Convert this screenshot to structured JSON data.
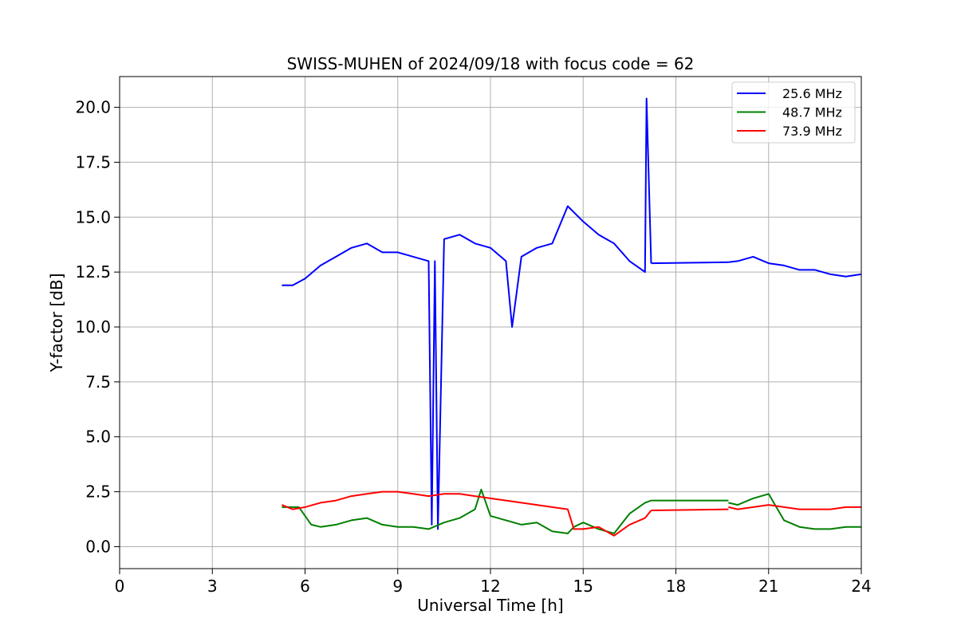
{
  "chart_data": {
    "type": "line",
    "title": "SWISS-MUHEN of 2024/09/18 with focus code = 62",
    "xlabel": "Universal Time [h]",
    "ylabel": "Y-factor [dB]",
    "xlim": [
      0,
      24
    ],
    "ylim": [
      -1.0,
      21.4
    ],
    "xticks": [
      0,
      3,
      6,
      9,
      12,
      15,
      18,
      21,
      24
    ],
    "xtick_labels": [
      "0",
      "3",
      "6",
      "9",
      "12",
      "15",
      "18",
      "21",
      "24"
    ],
    "yticks": [
      0.0,
      2.5,
      5.0,
      7.5,
      10.0,
      12.5,
      15.0,
      17.5,
      20.0
    ],
    "ytick_labels": [
      "0.0",
      "2.5",
      "5.0",
      "7.5",
      "10.0",
      "12.5",
      "15.0",
      "17.5",
      "20.0"
    ],
    "grid": true,
    "legend_position": "top-right",
    "series": [
      {
        "name": "25.6 MHz",
        "color": "#0000ff",
        "segments": [
          {
            "x": [
              5.25,
              5.6,
              6.0,
              6.5,
              7.0,
              7.5,
              8.0,
              8.5,
              9.0,
              9.5,
              10.0,
              10.1,
              10.2,
              10.3,
              10.5,
              11.0,
              11.5,
              12.0,
              12.5,
              12.7,
              13.0,
              13.5,
              14.0,
              14.5,
              15.0,
              15.5,
              16.0,
              16.5,
              17.0,
              17.05,
              17.2
            ],
            "y": [
              11.9,
              11.9,
              12.2,
              12.8,
              13.2,
              13.6,
              13.8,
              13.4,
              13.4,
              13.2,
              13.0,
              1.0,
              13.0,
              0.8,
              14.0,
              14.2,
              13.8,
              13.6,
              13.0,
              10.0,
              13.2,
              13.6,
              13.8,
              15.5,
              14.8,
              14.2,
              13.8,
              13.0,
              12.5,
              20.4,
              12.9
            ]
          },
          {
            "x": [
              17.2,
              19.7
            ],
            "y": [
              12.9,
              12.95
            ]
          },
          {
            "x": [
              19.7,
              20.0,
              20.5,
              21.0,
              21.5,
              22.0,
              22.5,
              23.0,
              23.5,
              24.0
            ],
            "y": [
              12.95,
              13.0,
              13.2,
              12.9,
              12.8,
              12.6,
              12.6,
              12.4,
              12.3,
              12.4
            ]
          }
        ]
      },
      {
        "name": "48.7 MHz",
        "color": "#008000",
        "segments": [
          {
            "x": [
              5.25,
              5.8,
              6.2,
              6.5,
              7.0,
              7.5,
              8.0,
              8.5,
              9.0,
              9.5,
              10.0,
              10.5,
              11.0,
              11.5,
              11.7,
              12.0,
              12.5,
              13.0,
              13.5,
              14.0,
              14.5,
              14.7,
              15.0,
              15.5,
              16.0,
              16.5,
              17.0,
              17.2
            ],
            "y": [
              1.8,
              1.8,
              1.0,
              0.9,
              1.0,
              1.2,
              1.3,
              1.0,
              0.9,
              0.9,
              0.8,
              1.1,
              1.3,
              1.7,
              2.6,
              1.4,
              1.2,
              1.0,
              1.1,
              0.7,
              0.6,
              0.9,
              1.1,
              0.8,
              0.6,
              1.5,
              2.0,
              2.1
            ]
          },
          {
            "x": [
              17.2,
              19.7
            ],
            "y": [
              2.1,
              2.1
            ]
          },
          {
            "x": [
              19.7,
              20.0,
              20.5,
              21.0,
              21.5,
              22.0,
              22.5,
              23.0,
              23.5,
              24.0
            ],
            "y": [
              2.0,
              1.9,
              2.2,
              2.4,
              1.2,
              0.9,
              0.8,
              0.8,
              0.9,
              0.9
            ]
          }
        ]
      },
      {
        "name": "73.9 MHz",
        "color": "#ff0000",
        "segments": [
          {
            "x": [
              5.25,
              5.6,
              6.0,
              6.5,
              7.0,
              7.5,
              8.0,
              8.5,
              9.0,
              9.5,
              10.0,
              10.5,
              11.0,
              11.5,
              12.0,
              12.5,
              13.0,
              13.5,
              14.0,
              14.5,
              14.7,
              15.0,
              15.5,
              16.0,
              16.5,
              17.0,
              17.2
            ],
            "y": [
              1.9,
              1.7,
              1.8,
              2.0,
              2.1,
              2.3,
              2.4,
              2.5,
              2.5,
              2.4,
              2.3,
              2.4,
              2.4,
              2.3,
              2.2,
              2.1,
              2.0,
              1.9,
              1.8,
              1.7,
              0.8,
              0.8,
              0.9,
              0.5,
              1.0,
              1.3,
              1.65
            ]
          },
          {
            "x": [
              17.2,
              19.7
            ],
            "y": [
              1.65,
              1.7
            ]
          },
          {
            "x": [
              19.7,
              20.0,
              20.5,
              21.0,
              21.5,
              22.0,
              22.5,
              23.0,
              23.5,
              24.0
            ],
            "y": [
              1.8,
              1.7,
              1.8,
              1.9,
              1.8,
              1.7,
              1.7,
              1.7,
              1.8,
              1.8
            ]
          }
        ]
      }
    ]
  }
}
